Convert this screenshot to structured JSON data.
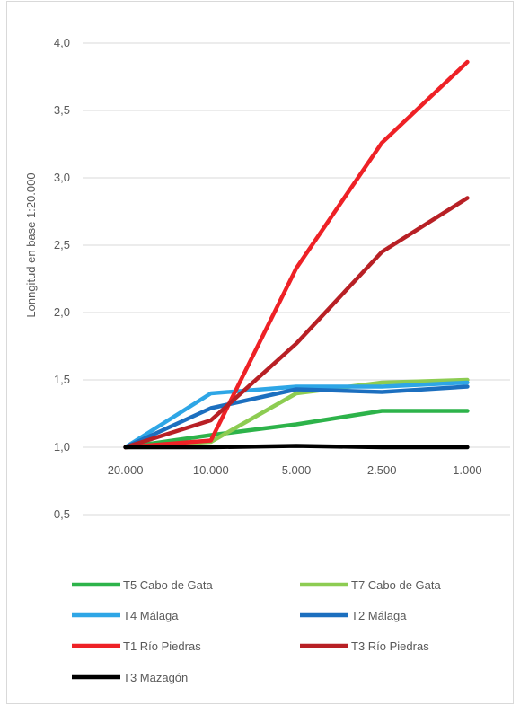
{
  "chart_data": {
    "type": "line",
    "title": "",
    "xlabel": "",
    "ylabel": "Lonngitud en base 1:20.000",
    "categories": [
      "20.000",
      "10.000",
      "5.000",
      "2.500",
      "1.000"
    ],
    "y_ticks": [
      "0,5",
      "1,0",
      "1,5",
      "2,0",
      "2,5",
      "3,0",
      "3,5",
      "4,0"
    ],
    "ylim": [
      0.5,
      4.0
    ],
    "x_axis_crosses_at": 1.0,
    "grid": "horizontal",
    "legend_position": "bottom",
    "series": [
      {
        "name": "T5 Cabo de Gata",
        "color": "#2db34a",
        "values": [
          1.0,
          1.09,
          1.17,
          1.27,
          1.27
        ]
      },
      {
        "name": "T7 Cabo de Gata",
        "color": "#8dcc52",
        "values": [
          1.0,
          1.04,
          1.4,
          1.48,
          1.5
        ]
      },
      {
        "name": "T4 Málaga",
        "color": "#2ea6e6",
        "values": [
          1.0,
          1.4,
          1.45,
          1.45,
          1.48
        ]
      },
      {
        "name": "T2 Málaga",
        "color": "#1c6fbf",
        "values": [
          1.0,
          1.29,
          1.43,
          1.41,
          1.45
        ]
      },
      {
        "name": "T1 Río Piedras",
        "color": "#ee2126",
        "values": [
          1.0,
          1.05,
          2.33,
          3.26,
          3.86
        ]
      },
      {
        "name": "T3 Río Piedras",
        "color": "#b82025",
        "values": [
          1.0,
          1.2,
          1.77,
          2.45,
          2.85
        ]
      },
      {
        "name": "T3 Mazagón",
        "color": "#000000",
        "values": [
          1.0,
          1.0,
          1.01,
          1.0,
          1.0
        ]
      }
    ]
  }
}
